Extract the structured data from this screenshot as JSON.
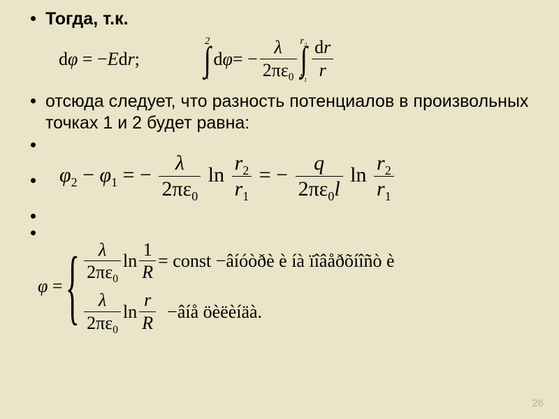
{
  "colors": {
    "background": "#eae4c8",
    "text": "#000000",
    "page_num": "#b8b29a"
  },
  "bullets": {
    "b1": "Тогда, т.к.",
    "b2": "отсюда следует, что разность потенциалов в произвольных точках 1 и 2 будет равна:"
  },
  "eq1_left": {
    "d1": "d",
    "phi": "φ",
    "eq": " = −",
    "E": "E",
    "d2": "d",
    "r": "r",
    "semi": ";"
  },
  "eq1_right": {
    "int1_lower": "1",
    "int1_upper": "2",
    "d1": "d",
    "phi": "φ",
    "eq": " = −",
    "lambda": "λ",
    "two_pi_eps": "2πε",
    "zero": "0",
    "int2_lower": "r",
    "int2_lower_sub": "1",
    "int2_upper": "r",
    "int2_upper_sub": "2",
    "d2": "d",
    "r_top": "r",
    "r_bot": "r"
  },
  "eq2": {
    "phi": "φ",
    "sub2": "2",
    "minus": " − ",
    "sub1": "1",
    "eq": " = −",
    "lambda": "λ",
    "two_pi_eps": "2πε",
    "zero": "0",
    "ln": "ln",
    "r": "r",
    "rs2": "2",
    "rs1": "1",
    "eq2": " = −",
    "q": "q",
    "l": "l"
  },
  "eq3": {
    "phi": "φ",
    "eq": " = ",
    "lambda": "λ",
    "two_pi_eps": "2πε",
    "zero": "0",
    "ln": "ln",
    "one": "1",
    "R": "R",
    "const_txt": " = const − ",
    "garb1": "âíóòðè  è íà  ïîâåðõíîñò   è",
    "r": "r",
    "dash": " − ",
    "garb2": "âíå  öèëèíäà."
  },
  "page_number": "26"
}
